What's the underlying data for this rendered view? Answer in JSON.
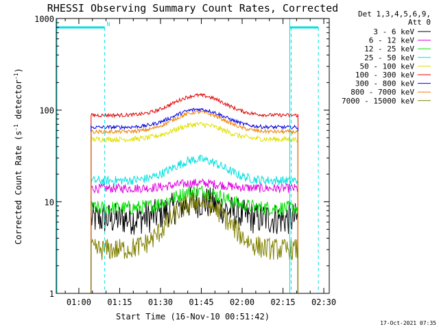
{
  "chart_data": {
    "type": "line",
    "title": "RHESSI Observing Summary Count Rates, Corrected",
    "xlabel": "Start Time (16-Nov-10 00:51:42)",
    "ylabel_main": "Corrected Count Rate (s",
    "ylabel_sup1": "-1",
    "ylabel_mid": " detector",
    "ylabel_sup2": "-1",
    "ylabel_end": ")",
    "yscale": "log",
    "ylim": [
      1,
      1000
    ],
    "xlim": [
      "00:51:42",
      "02:32:00"
    ],
    "x_ticks": [
      "01:00",
      "01:15",
      "01:30",
      "01:45",
      "02:00",
      "02:15",
      "02:30"
    ],
    "x_tick_minutes": [
      60,
      75,
      90,
      105,
      120,
      135,
      150
    ],
    "x_range_minutes": [
      51.7,
      152.0
    ],
    "y_ticks": [
      "1",
      "10",
      "100",
      "1000"
    ],
    "y_tick_values": [
      1,
      10,
      100,
      1000
    ],
    "legend_title_1": "Det 1,3,4,5,6,9,",
    "legend_title_2": "Att 0",
    "legend_position": "top-right, outside plot",
    "night_marker": "N",
    "timestamp": "17-Oct-2021 07:35",
    "series": [
      {
        "name": "3 - 6 keV",
        "color": "#000000",
        "data_start_min": 64.5,
        "data_end_min": 140.5,
        "base": 6.5,
        "peak": 10,
        "noise": 0.18
      },
      {
        "name": "6 - 12 keV",
        "color": "#e000e0",
        "data_start_min": 64.5,
        "data_end_min": 140.5,
        "base": 14,
        "peak": 16,
        "noise": 0.05
      },
      {
        "name": "12 - 25 keV",
        "color": "#00e000",
        "data_start_min": 64.5,
        "data_end_min": 140.5,
        "base": 8.5,
        "peak": 13,
        "noise": 0.08
      },
      {
        "name": "25 - 50 keV",
        "color": "#00e0e0",
        "data_start_min": 64.5,
        "data_end_min": 140.5,
        "base": 17,
        "peak": 29,
        "noise": 0.05
      },
      {
        "name": "50 - 100 keV",
        "color": "#e0e000",
        "data_start_min": 64.5,
        "data_end_min": 140.5,
        "base": 48,
        "peak": 70,
        "noise": 0.03
      },
      {
        "name": "100 - 300 keV",
        "color": "#e00000",
        "data_start_min": 64.5,
        "data_end_min": 140.5,
        "base": 88,
        "peak": 145,
        "noise": 0.02
      },
      {
        "name": "300 - 800 keV",
        "color": "#0000e0",
        "data_start_min": 64.5,
        "data_end_min": 140.5,
        "base": 65,
        "peak": 102,
        "noise": 0.02
      },
      {
        "name": "800 - 7000 keV",
        "color": "#f08000",
        "data_start_min": 64.5,
        "data_end_min": 140.5,
        "base": 58,
        "peak": 95,
        "noise": 0.02
      },
      {
        "name": "7000 - 15000 keV",
        "color": "#808000",
        "data_start_min": 64.5,
        "data_end_min": 140.5,
        "base": 3,
        "peak": 10,
        "noise": 0.12
      }
    ],
    "night_periods": [
      {
        "start_min": 51.7,
        "end_min": 69.5,
        "level": 800
      },
      {
        "start_min": 137.5,
        "end_min": 148.0,
        "level": 800
      }
    ],
    "saa_lines_min": [
      69.5,
      138.0,
      148.0
    ],
    "vertical_edges_min": [
      137.5
    ]
  }
}
